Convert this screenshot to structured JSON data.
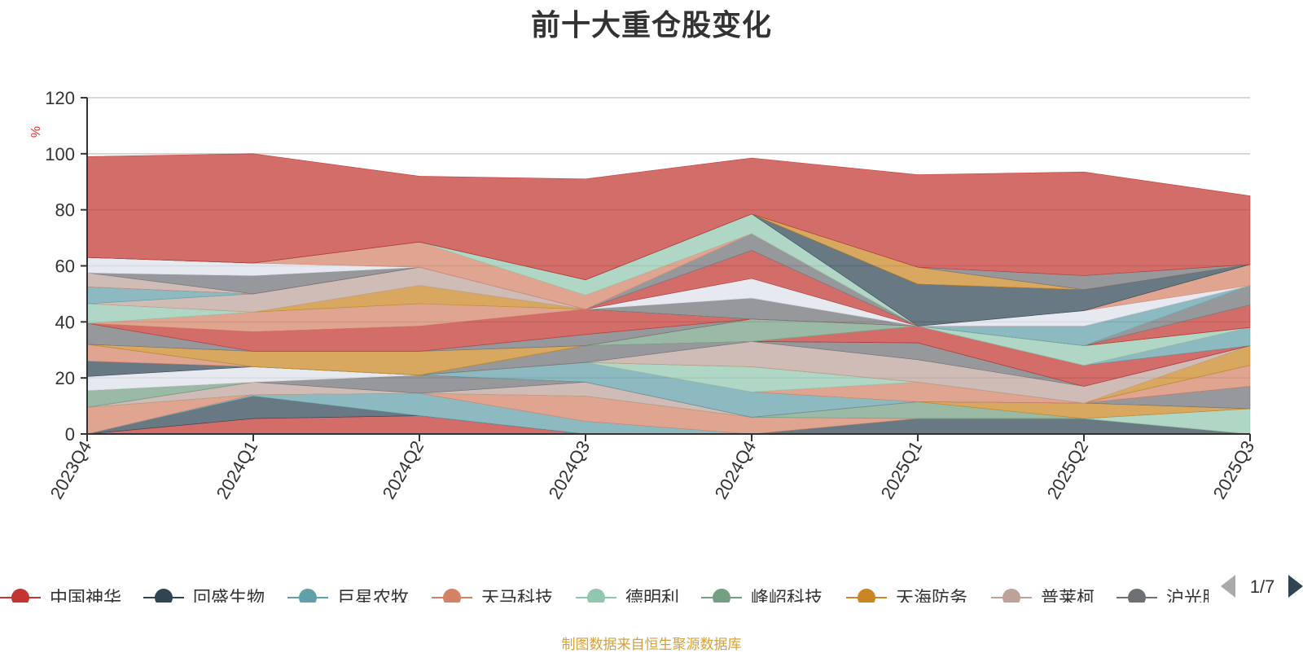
{
  "title": "前十大重仓股变化",
  "source_note": "制图数据来自恒生聚源数据库",
  "chart_data": {
    "type": "area",
    "stacked": true,
    "title": "前十大重仓股变化",
    "ylabel": "%",
    "ylim": [
      0,
      120
    ],
    "yticks": [
      0,
      20,
      40,
      60,
      80,
      100,
      120
    ],
    "grid": true,
    "x": [
      "2023Q4",
      "2024Q1",
      "2024Q2",
      "2024Q3",
      "2024Q4",
      "2025Q1",
      "2025Q2",
      "2025Q3"
    ],
    "legend": {
      "position": "bottom",
      "page": "1/7",
      "items": [
        {
          "name": "中国神华",
          "color": "#c23531"
        },
        {
          "name": "回盛生物",
          "color": "#2f4554"
        },
        {
          "name": "巨星农牧",
          "color": "#61a0a8"
        },
        {
          "name": "天马科技",
          "color": "#d48265"
        },
        {
          "name": "德明利",
          "color": "#91c7ae"
        },
        {
          "name": "峰岹科技",
          "color": "#749f83"
        },
        {
          "name": "天海防务",
          "color": "#ca8622"
        },
        {
          "name": "普莱柯",
          "color": "#bda29a"
        },
        {
          "name": "沪光股份",
          "color": "#6e7074"
        }
      ]
    },
    "bands": [
      {
        "color": "#c23531",
        "values": [
          0,
          5.5,
          6.5,
          0,
          0,
          0,
          0,
          0
        ]
      },
      {
        "color": "#2f4554",
        "values": [
          0,
          8,
          0,
          0,
          0,
          5.5,
          5.5,
          0
        ]
      },
      {
        "color": "#61a0a8",
        "values": [
          0,
          0.5,
          8,
          4.5,
          0,
          0,
          0,
          0
        ]
      },
      {
        "color": "#d48265",
        "values": [
          9.5,
          0,
          0,
          9,
          6,
          0,
          0,
          0
        ]
      },
      {
        "color": "#91c7ae",
        "values": [
          0,
          0,
          0,
          0,
          0,
          0,
          0,
          9
        ]
      },
      {
        "color": "#749f83",
        "values": [
          0,
          0,
          0,
          0,
          0,
          6,
          0,
          0
        ]
      },
      {
        "color": "#ca8622",
        "values": [
          0,
          0,
          0,
          0,
          0,
          0,
          5.5,
          0
        ]
      },
      {
        "color": "#bda29a",
        "values": [
          0,
          4.5,
          0,
          5,
          0,
          0,
          0,
          0
        ]
      },
      {
        "color": "#6e7074",
        "values": [
          0,
          0,
          6.5,
          0,
          0,
          0,
          0,
          8
        ]
      },
      {
        "color": "#a8b3c3",
        "values": [
          0,
          0,
          0,
          0,
          0,
          0,
          0,
          0
        ]
      },
      {
        "color": "#c23531",
        "values": [
          0,
          0,
          0,
          0,
          0,
          0,
          0,
          0
        ]
      },
      {
        "color": "#61a0a8",
        "values": [
          0,
          0,
          0,
          7,
          9,
          0,
          0,
          0
        ]
      },
      {
        "color": "#d48265",
        "values": [
          0,
          0,
          0,
          0,
          0,
          7,
          0,
          7.5
        ]
      },
      {
        "color": "#91c7ae",
        "values": [
          0,
          0,
          0,
          0,
          9,
          0,
          0,
          0
        ]
      },
      {
        "color": "#749f83",
        "values": [
          6,
          0,
          0,
          0,
          0,
          0,
          0,
          0
        ]
      },
      {
        "color": "#ca8622",
        "values": [
          0,
          0,
          0,
          0,
          0,
          0,
          0,
          7
        ]
      },
      {
        "color": "#bda29a",
        "values": [
          0,
          0,
          0,
          0,
          9,
          8,
          6,
          0
        ]
      },
      {
        "color": "#6e7074",
        "values": [
          0,
          0,
          0,
          6,
          0,
          6,
          0,
          0
        ]
      },
      {
        "color": "#dde1ea",
        "values": [
          5,
          5.5,
          0,
          0,
          0,
          0,
          0,
          0
        ]
      },
      {
        "color": "#2f4554",
        "values": [
          5.5,
          0,
          0,
          0,
          0,
          0,
          0,
          0
        ]
      },
      {
        "color": "#c23531",
        "values": [
          0,
          0,
          0,
          0,
          0,
          6,
          7.5,
          0
        ]
      },
      {
        "color": "#61a0a8",
        "values": [
          0,
          0,
          0,
          0,
          0,
          0,
          0,
          6.5
        ]
      },
      {
        "color": "#d48265",
        "values": [
          6,
          0,
          0,
          0,
          0,
          0,
          0,
          0
        ]
      },
      {
        "color": "#91c7ae",
        "values": [
          0,
          0,
          0,
          0,
          0,
          0,
          7,
          0
        ]
      },
      {
        "color": "#749f83",
        "values": [
          0,
          0,
          0,
          0,
          8,
          0,
          0,
          0
        ]
      },
      {
        "color": "#ca8622",
        "values": [
          0,
          5.5,
          8.5,
          0,
          0,
          0,
          0,
          0
        ]
      },
      {
        "color": "#bda29a",
        "values": [
          0,
          0,
          0,
          0,
          0,
          0,
          0,
          0
        ]
      },
      {
        "color": "#6e7074",
        "values": [
          7.5,
          0,
          0,
          4,
          0,
          0,
          0,
          0
        ]
      },
      {
        "color": "#c23531",
        "values": [
          0,
          7,
          9,
          9,
          0,
          0,
          0,
          8
        ]
      },
      {
        "color": "#d48265",
        "values": [
          0,
          7,
          8,
          0,
          0,
          0,
          0,
          0
        ]
      },
      {
        "color": "#91c7ae",
        "values": [
          7,
          0,
          0,
          0,
          0,
          0,
          0,
          0
        ]
      },
      {
        "color": "#ca8622",
        "values": [
          0,
          0,
          6.5,
          0,
          0,
          0,
          0,
          0
        ]
      },
      {
        "color": "#bda29a",
        "values": [
          0,
          6.5,
          6.5,
          0,
          0,
          0,
          0,
          0
        ]
      },
      {
        "color": "#6e7074",
        "values": [
          0,
          0,
          0,
          0,
          7.5,
          0,
          0,
          7
        ]
      },
      {
        "color": "#dde1ea",
        "values": [
          0,
          0,
          0,
          0,
          7,
          0,
          0,
          0
        ]
      },
      {
        "color": "#61a0a8",
        "values": [
          6,
          0,
          0,
          0,
          0,
          0,
          7,
          0
        ]
      },
      {
        "color": "#c23531",
        "values": [
          0,
          0,
          0,
          0,
          10,
          0,
          0,
          0
        ]
      },
      {
        "color": "#bda29a",
        "values": [
          5,
          0,
          0,
          0,
          0,
          0,
          0,
          0
        ]
      },
      {
        "color": "#6e7074",
        "values": [
          0,
          6.5,
          0,
          0,
          6,
          0,
          0,
          0
        ]
      },
      {
        "color": "#dde1ea",
        "values": [
          5.5,
          4.5,
          0,
          0,
          0,
          0,
          5.5,
          0
        ]
      },
      {
        "color": "#d48265",
        "values": [
          0,
          0,
          9,
          5,
          0,
          0,
          0,
          7.5
        ]
      },
      {
        "color": "#91c7ae",
        "values": [
          0,
          0,
          0,
          5.5,
          7,
          0,
          0,
          0
        ]
      },
      {
        "color": "#2f4554",
        "values": [
          0,
          0,
          0,
          0,
          0,
          15,
          7.5,
          0
        ]
      },
      {
        "color": "#ca8622",
        "values": [
          0,
          0,
          0,
          0,
          0,
          6,
          0,
          0
        ]
      },
      {
        "color": "#6e7074",
        "values": [
          0,
          0,
          0,
          0,
          0,
          0,
          5,
          0
        ]
      },
      {
        "color": "#c23531",
        "values": [
          36,
          39,
          23.5,
          36,
          20,
          33,
          37,
          24.5
        ]
      }
    ]
  }
}
